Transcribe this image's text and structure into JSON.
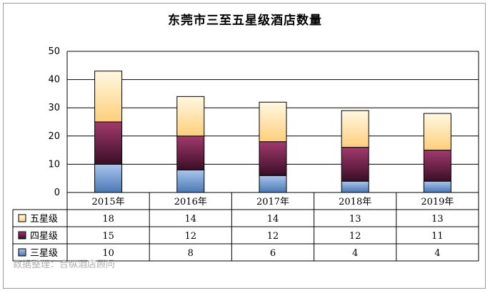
{
  "chart_data": {
    "type": "bar",
    "stacked": true,
    "title": "东莞市三至五星级酒店数量",
    "categories": [
      "2015年",
      "2016年",
      "2017年",
      "2018年",
      "2019年"
    ],
    "series": [
      {
        "name": "三星级",
        "values": [
          10,
          8,
          6,
          4,
          4
        ],
        "color": "#8fb4e3"
      },
      {
        "name": "四星级",
        "values": [
          15,
          12,
          12,
          12,
          11
        ],
        "color": "#7b2a55"
      },
      {
        "name": "五星级",
        "values": [
          18,
          14,
          14,
          13,
          13
        ],
        "color": "#ffd99a"
      }
    ],
    "ylim": [
      0,
      50
    ],
    "yticks": [
      0,
      10,
      20,
      30,
      40,
      50
    ],
    "grid": true,
    "legend": "data-table-left"
  },
  "source": "数据整理：合纵酒店顾问"
}
